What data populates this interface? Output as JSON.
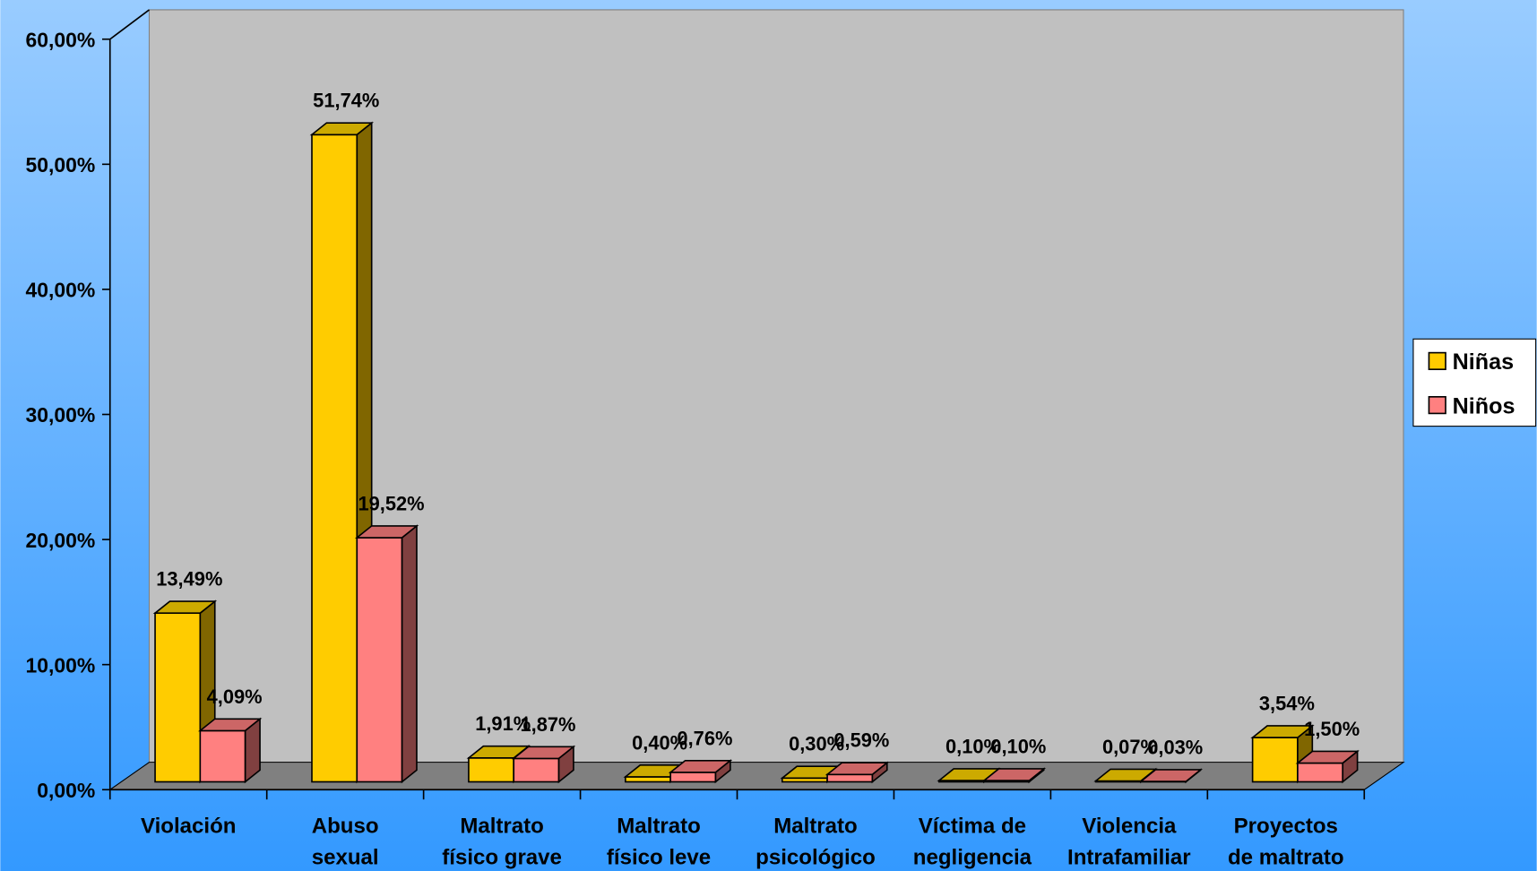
{
  "chart_data": {
    "type": "bar3d",
    "categories": [
      [
        "Violación"
      ],
      [
        "Abuso",
        "sexual"
      ],
      [
        "Maltrato",
        "físico grave"
      ],
      [
        "Maltrato",
        "físico leve"
      ],
      [
        "Maltrato",
        "psicológico"
      ],
      [
        "Víctima de",
        "negligencia"
      ],
      [
        "Violencia",
        "Intrafamiliar"
      ],
      [
        "Proyectos",
        "de maltrato"
      ]
    ],
    "series": [
      {
        "name": "Niñas",
        "color": "#ffcc00",
        "side": "#806600",
        "top": "#ccaa00",
        "values": [
          13.49,
          51.74,
          1.91,
          0.4,
          0.3,
          0.1,
          0.07,
          3.54
        ],
        "value_labels": [
          "13,49%",
          "51,74%",
          "1,91%",
          "0,40%",
          "0,30%",
          "0,10%",
          "0,07%",
          "3,54%"
        ]
      },
      {
        "name": "Niños",
        "color": "#ff8080",
        "side": "#804040",
        "top": "#cc6666",
        "values": [
          4.09,
          19.52,
          1.87,
          0.76,
          0.59,
          0.1,
          0.03,
          1.5
        ],
        "value_labels": [
          "4,09%",
          "19,52%",
          "1,87%",
          "0,76%",
          "0,59%",
          "0,10%",
          "0,03%",
          "1,50%"
        ]
      }
    ],
    "ylim": [
      0,
      60
    ],
    "yticks": [
      {
        "value": 0,
        "label": "0,00%"
      },
      {
        "value": 10,
        "label": "10,00%"
      },
      {
        "value": 20,
        "label": "20,00%"
      },
      {
        "value": 30,
        "label": "30,00%"
      },
      {
        "value": 40,
        "label": "40,00%"
      },
      {
        "value": 50,
        "label": "50,00%"
      },
      {
        "value": 60,
        "label": "60,00%"
      }
    ],
    "legend": "right"
  }
}
